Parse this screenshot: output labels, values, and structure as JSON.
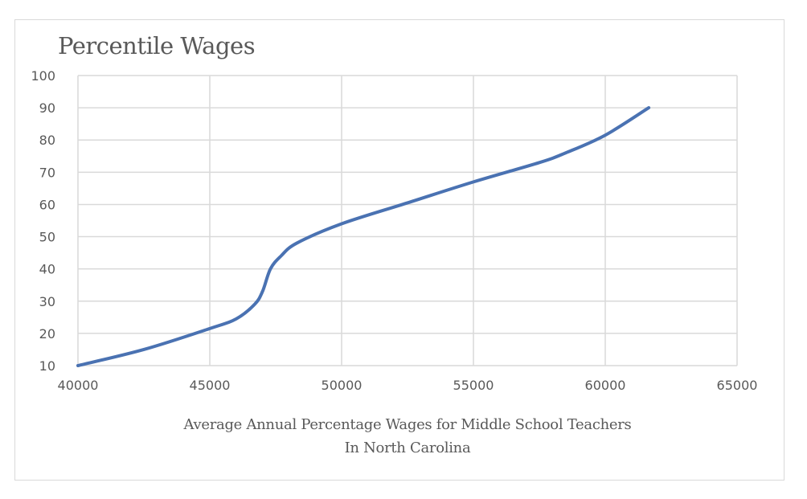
{
  "chart": {
    "title": "Percentile Wages",
    "xlabel_line1": "Average Annual Percentage Wages for Middle School Teachers",
    "xlabel_line2": "In North Carolina",
    "line_color": "#4a72b2",
    "grid_color": "#d9d9d9",
    "text_color": "#595959"
  },
  "chart_data": {
    "type": "line",
    "title": "Percentile Wages",
    "xlabel": "Average Annual Percentage Wages for Middle School Teachers In North Carolina",
    "ylabel": "",
    "xlim": [
      40000,
      65000
    ],
    "ylim": [
      10,
      100
    ],
    "x_ticks": [
      40000,
      45000,
      50000,
      55000,
      60000,
      65000
    ],
    "y_ticks": [
      10,
      20,
      30,
      40,
      50,
      60,
      70,
      80,
      90,
      100
    ],
    "grid": true,
    "legend": null,
    "series": [
      {
        "name": "Percentile Wages",
        "x": [
          40000,
          42500,
          45000,
          46000,
          46700,
          47000,
          47300,
          47700,
          48300,
          50000,
          52500,
          55000,
          57500,
          58500,
          60000,
          61650
        ],
        "y": [
          10,
          15,
          21.5,
          24.5,
          29,
          33,
          40,
          44,
          48,
          54,
          60.5,
          67,
          73,
          76,
          81.5,
          90
        ]
      }
    ]
  }
}
